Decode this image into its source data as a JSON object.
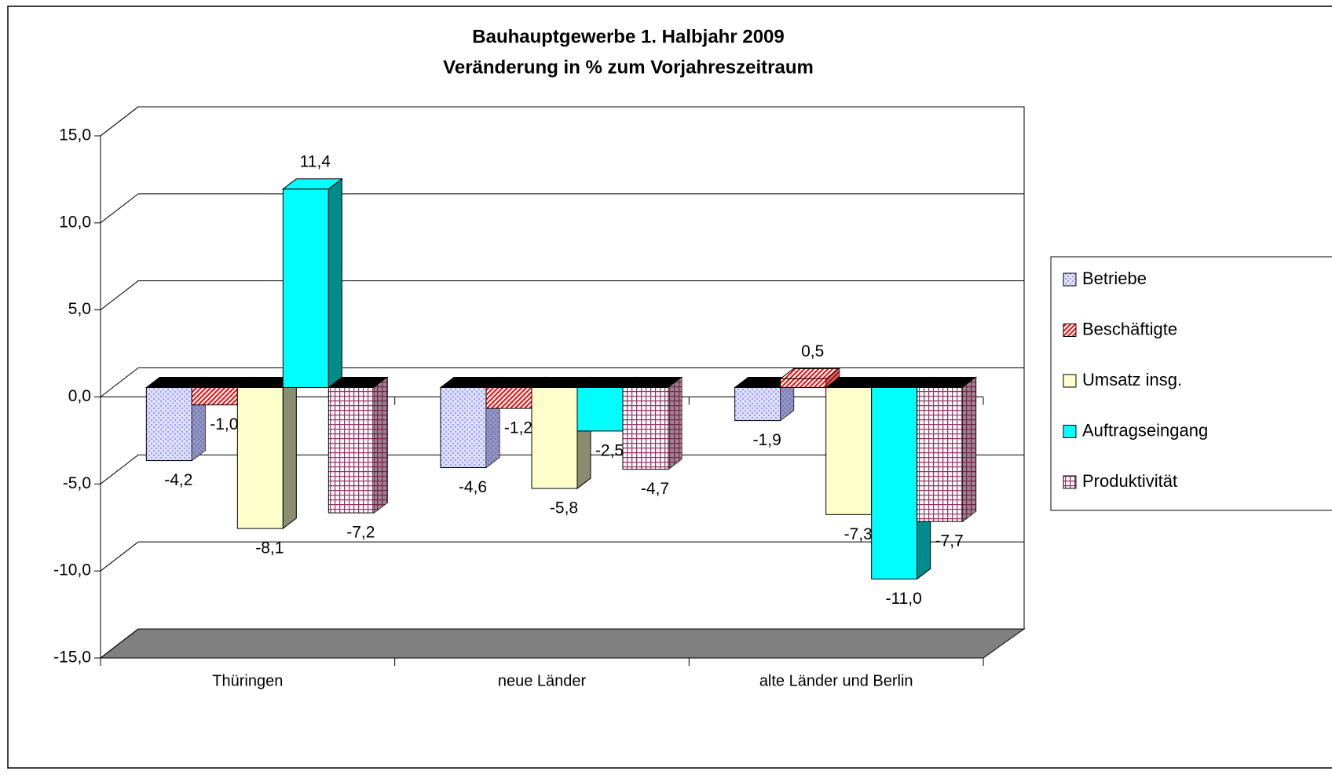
{
  "chart_data": {
    "type": "bar3d",
    "title": "Bauhauptgewerbe 1. Halbjahr 2009",
    "subtitle": "Veränderung in % zum Vorjahreszeitraum",
    "categories": [
      "Thüringen",
      "neue Länder",
      "alte Länder und Berlin"
    ],
    "series": [
      {
        "name": "Betriebe",
        "color": "#9999ff",
        "pattern": "dots",
        "values": [
          -4.2,
          -4.6,
          -1.9
        ],
        "value_labels": [
          "-4,2",
          "-4,6",
          "-1,9"
        ]
      },
      {
        "name": "Beschäftigte",
        "color": "#ff0000",
        "pattern": "hatch",
        "values": [
          -1.0,
          -1.2,
          0.5
        ],
        "value_labels": [
          "-1,0",
          "-1,2",
          "0,5"
        ]
      },
      {
        "name": "Umsatz insg.",
        "color": "#ffffcc",
        "pattern": "solid",
        "values": [
          -8.1,
          -5.8,
          -7.3
        ],
        "value_labels": [
          "-8,1",
          "-5,8",
          "-7,3"
        ]
      },
      {
        "name": "Auftragseingang",
        "color": "#00ffff",
        "pattern": "solid",
        "values": [
          11.4,
          -2.5,
          -11.0
        ],
        "value_labels": [
          "11,4",
          "-2,5",
          "-11,0"
        ]
      },
      {
        "name": "Produktivität",
        "color": "#993366",
        "pattern": "grid",
        "values": [
          -7.2,
          -4.7,
          -7.7
        ],
        "value_labels": [
          "-7,2",
          "-4,7",
          "-7,7"
        ]
      }
    ],
    "ylim": [
      -15,
      15
    ],
    "yticks": [
      {
        "value": -15,
        "label": "-15,0"
      },
      {
        "value": -10,
        "label": "-10,0"
      },
      {
        "value": -5,
        "label": "-5,0"
      },
      {
        "value": 0,
        "label": "0,0"
      },
      {
        "value": 5,
        "label": "5,0"
      },
      {
        "value": 10,
        "label": "10,0"
      },
      {
        "value": 15,
        "label": "15,0"
      }
    ],
    "grid": true,
    "legend": "right"
  }
}
